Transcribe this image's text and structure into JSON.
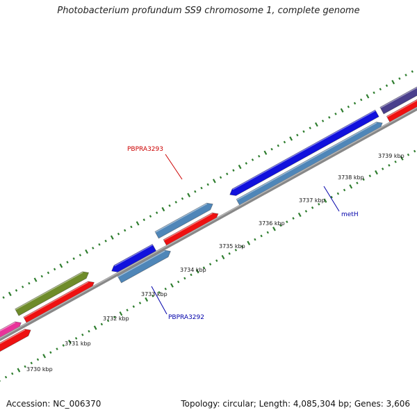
{
  "title": "Photobacterium profundum SS9 chromosome 1, complete genome",
  "accession_text": "Accession: NC_006370",
  "summary_text": "Topology: circular; Length: 4,085,304 bp; Genes: 3,606",
  "colors": {
    "backbone": "#888888",
    "tick": "#2e7d2e",
    "forward_label": "#cc0000",
    "reverse_label": "#0000aa"
  },
  "ticks": [
    {
      "label": "3730 kbp"
    },
    {
      "label": "3731 kbp"
    },
    {
      "label": "3732 kbp"
    },
    {
      "label": "3733 kbp"
    },
    {
      "label": "3734 kbp"
    },
    {
      "label": "3735 kbp"
    },
    {
      "label": "3736 kbp"
    },
    {
      "label": "3737 kbp"
    },
    {
      "label": "3738 kbp"
    },
    {
      "label": "3739 kbp"
    }
  ],
  "features": [
    {
      "name": "pink-gene",
      "color": "#e8339a",
      "label": ""
    },
    {
      "name": "olive-gene",
      "color": "#6e8b2a",
      "label": ""
    },
    {
      "name": "blue-gene-3733",
      "color": "#1111dd",
      "label": ""
    },
    {
      "name": "steelblue-gene-3733",
      "color": "#4f86b8",
      "label": ""
    },
    {
      "name": "pbpra3293-gene",
      "color": "#4f86b8",
      "label": "PBPRA3293"
    },
    {
      "name": "meth-gene",
      "color": "#1111dd",
      "label": ""
    },
    {
      "name": "steelblue-gene-3737",
      "color": "#4f86b8",
      "label": ""
    },
    {
      "name": "purple-gene",
      "color": "#4a3f8c",
      "label": ""
    },
    {
      "name": "red-cds-1",
      "color": "#ee1111",
      "label": ""
    },
    {
      "name": "red-cds-2",
      "color": "#ee1111",
      "label": ""
    },
    {
      "name": "red-cds-3",
      "color": "#ee1111",
      "label": ""
    },
    {
      "name": "red-cds-4",
      "color": "#ee1111",
      "label": ""
    }
  ],
  "gene_labels": [
    {
      "name": "PBPRA3293",
      "strand": "forward"
    },
    {
      "name": "PBPRA3292",
      "strand": "reverse"
    },
    {
      "name": "metH",
      "strand": "reverse"
    }
  ]
}
